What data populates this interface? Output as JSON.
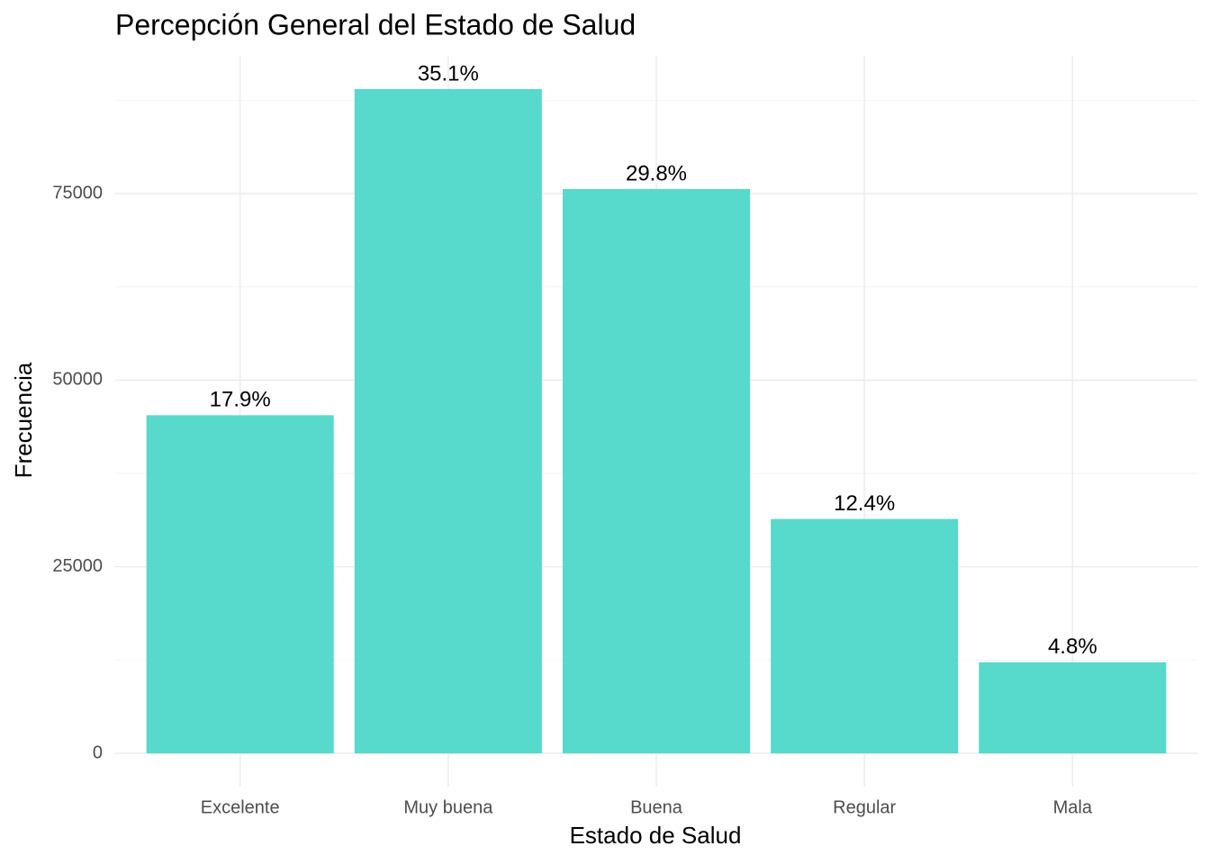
{
  "chart_data": {
    "type": "bar",
    "title": "Percepción General del Estado de Salud",
    "x_label": "Estado de Salud",
    "y_label": "Frecuencia",
    "categories": [
      "Excelente",
      "Muy buena",
      "Buena",
      "Regular",
      "Mala"
    ],
    "values": [
      45300,
      89000,
      75600,
      31400,
      12200
    ],
    "annotations": [
      "17.9%",
      "35.1%",
      "29.8%",
      "12.4%",
      "4.8%"
    ],
    "color": "#57d9cb",
    "ylim": [
      -4450,
      93450
    ],
    "yticks": [
      0,
      25000,
      50000,
      75000
    ],
    "grid": true
  }
}
